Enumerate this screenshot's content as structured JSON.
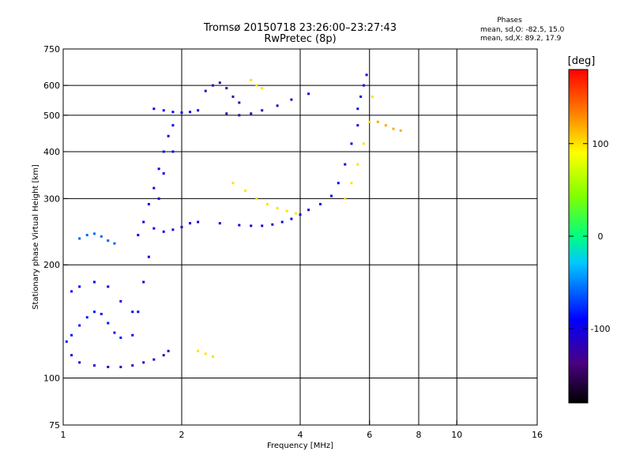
{
  "header": {
    "title_line1": "Tromsø 20150718 23:26:00–23:27:43",
    "title_line2": "RwPretec (8p)"
  },
  "stats": {
    "title": "Phases",
    "line_o": "mean, sd,O: -82.5, 15.0",
    "line_x": "mean, sd,X:  89.2, 17.9"
  },
  "colorbar": {
    "title": "[deg]",
    "range": [
      -180,
      180
    ],
    "ticks": [
      100,
      0,
      -100
    ]
  },
  "chart_data": {
    "type": "scatter",
    "title": "Tromsø 20150718 23:26:00–23:27:43",
    "subtitle": "RwPretec (8p)",
    "xlabel": "Frequency [MHz]",
    "ylabel": "Stationary phase Virtual Height [km]",
    "xscale": "log",
    "yscale": "log",
    "xlim": [
      1,
      16
    ],
    "ylim": [
      75,
      750
    ],
    "xticks": [
      1,
      2,
      4,
      6,
      8,
      10,
      16
    ],
    "yticks": [
      75,
      100,
      200,
      300,
      400,
      500,
      600,
      750
    ],
    "xgrid": [
      2,
      4,
      6,
      8,
      10
    ],
    "ygrid": [
      100,
      200,
      300,
      400,
      500,
      600
    ],
    "color_variable": "Phase [deg]",
    "series": [
      {
        "x": [
          1.05,
          1.1,
          1.2,
          1.3,
          1.4,
          1.5,
          1.6,
          1.7,
          1.8,
          1.85
        ],
        "y": [
          115,
          110,
          108,
          107,
          107,
          108,
          110,
          112,
          115,
          118
        ],
        "color": -110
      },
      {
        "x": [
          1.02,
          1.05,
          1.1,
          1.15,
          1.2,
          1.25,
          1.3,
          1.35,
          1.4
        ],
        "y": [
          125,
          130,
          138,
          145,
          150,
          148,
          140,
          132,
          128
        ],
        "color": -85
      },
      {
        "x": [
          1.05,
          1.1,
          1.2,
          1.3,
          1.4,
          1.5
        ],
        "y": [
          170,
          175,
          180,
          175,
          160,
          150
        ],
        "color": -95
      },
      {
        "x": [
          1.5,
          1.55,
          1.6,
          1.65,
          1.7,
          1.75,
          1.8,
          1.9
        ],
        "y": [
          130,
          150,
          180,
          210,
          250,
          300,
          350,
          400
        ],
        "color": -95
      },
      {
        "x": [
          1.55,
          1.6,
          1.65,
          1.7,
          1.75,
          1.8,
          1.85,
          1.9
        ],
        "y": [
          240,
          260,
          290,
          320,
          360,
          400,
          440,
          470
        ],
        "color": -100
      },
      {
        "x": [
          1.7,
          1.8,
          1.9,
          2.0,
          2.1,
          2.2
        ],
        "y": [
          520,
          515,
          510,
          508,
          510,
          515
        ],
        "color": -95
      },
      {
        "x": [
          1.8,
          1.9,
          2.0,
          2.1,
          2.2,
          2.5,
          2.8,
          3.0,
          3.2,
          3.4,
          3.6,
          3.8,
          4.0,
          4.2,
          4.5,
          4.8,
          5.0,
          5.2,
          5.4,
          5.6
        ],
        "y": [
          245,
          248,
          252,
          258,
          260,
          258,
          255,
          254,
          254,
          256,
          260,
          265,
          272,
          280,
          290,
          305,
          330,
          370,
          420,
          470
        ],
        "color": -100
      },
      {
        "x": [
          5.2,
          5.4,
          5.6,
          5.8,
          6.0,
          6.1
        ],
        "y": [
          300,
          330,
          370,
          420,
          480,
          560
        ],
        "color": 100
      },
      {
        "x": [
          2.7,
          2.9,
          3.1,
          3.3,
          3.5,
          3.7,
          3.9
        ],
        "y": [
          330,
          315,
          300,
          290,
          283,
          278,
          274
        ],
        "color": 100
      },
      {
        "x": [
          2.6,
          2.8,
          3.0,
          3.2,
          3.5,
          3.8,
          4.2
        ],
        "y": [
          505,
          500,
          505,
          515,
          530,
          550,
          570
        ],
        "color": -115
      },
      {
        "x": [
          2.3,
          2.4,
          2.5,
          2.6,
          2.7,
          2.8
        ],
        "y": [
          580,
          600,
          610,
          590,
          560,
          540
        ],
        "color": -120
      },
      {
        "x": [
          5.6,
          5.7,
          5.8,
          5.9
        ],
        "y": [
          520,
          560,
          600,
          640
        ],
        "color": -100
      },
      {
        "x": [
          6.3,
          6.6,
          6.9,
          7.2
        ],
        "y": [
          480,
          470,
          460,
          455
        ],
        "color": 120
      },
      {
        "x": [
          1.1,
          1.15,
          1.2,
          1.25,
          1.3,
          1.35
        ],
        "y": [
          235,
          240,
          242,
          238,
          232,
          228
        ],
        "color": -60
      },
      {
        "x": [
          2.2,
          2.3,
          2.4
        ],
        "y": [
          118,
          116,
          114
        ],
        "color": 100
      },
      {
        "x": [
          3.0,
          3.1,
          3.2
        ],
        "y": [
          620,
          600,
          590
        ],
        "color": 100
      }
    ]
  }
}
